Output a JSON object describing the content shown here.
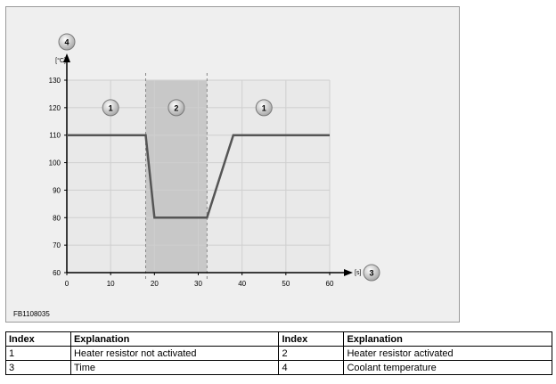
{
  "chart_data": {
    "type": "line",
    "figure_code": "FB1108035",
    "x_unit": "[s]",
    "y_unit": "[°C]",
    "xlim": [
      0,
      60
    ],
    "ylim": [
      60,
      130
    ],
    "x_ticks": [
      0,
      10,
      20,
      30,
      40,
      50,
      60
    ],
    "y_ticks": [
      60,
      70,
      80,
      90,
      100,
      110,
      120,
      130
    ],
    "grid": true,
    "series": [
      {
        "x": [
          0,
          18,
          20,
          32,
          38,
          60
        ],
        "y": [
          110,
          110,
          80,
          80,
          110,
          110
        ]
      }
    ],
    "shaded_region": {
      "x_start": 18,
      "x_end": 32
    },
    "dashed_lines_x": [
      18,
      32
    ],
    "region_markers": [
      {
        "label": "1",
        "x": 10,
        "y": 120
      },
      {
        "label": "2",
        "x": 25,
        "y": 120
      },
      {
        "label": "1",
        "x": 45,
        "y": 120
      }
    ],
    "axis_markers": {
      "y": "4",
      "x": "3"
    },
    "colors": {
      "background": "#efefef",
      "grid": "#cfcfcf",
      "shade": "#c8c8c8",
      "line": "#555555"
    }
  },
  "legend_table": {
    "headers": [
      "Index",
      "Explanation",
      "Index",
      "Explanation"
    ],
    "rows": [
      [
        "1",
        "Heater resistor not activated",
        "2",
        "Heater resistor activated"
      ],
      [
        "3",
        "Time",
        "4",
        "Coolant temperature"
      ]
    ]
  }
}
